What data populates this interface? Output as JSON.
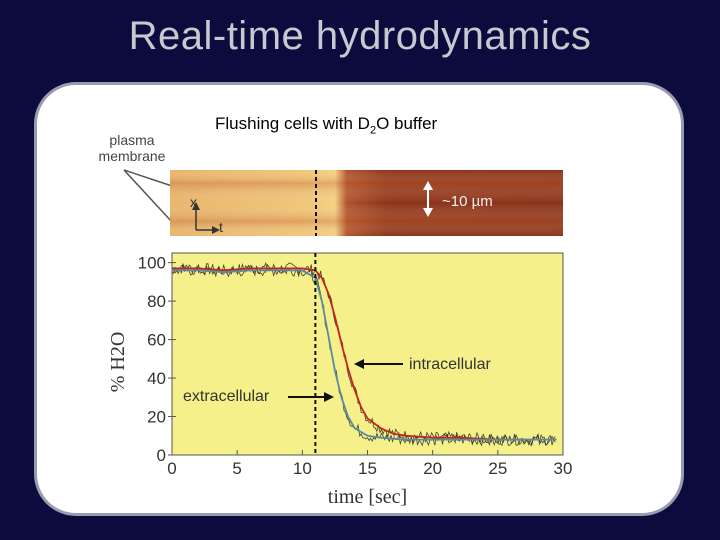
{
  "slide": {
    "title": "Real-time hydrodynamics"
  },
  "figure": {
    "caption_main": "Flushing cells with D",
    "caption_sub": "2",
    "caption_end": "O buffer",
    "membrane_label_line1": "plasma",
    "membrane_label_line2": "membrane",
    "kymograph": {
      "scale_label": "~10 µm",
      "axis_x_label": "x",
      "axis_t_label": "t"
    }
  },
  "chart_data": {
    "type": "line",
    "xlabel": "time [sec]",
    "ylabel": "% H2O",
    "xlim": [
      0,
      30
    ],
    "ylim": [
      0,
      105
    ],
    "xticks": [
      0,
      5,
      10,
      15,
      20,
      25,
      30
    ],
    "yticks": [
      0,
      20,
      40,
      60,
      80,
      100
    ],
    "event_time": 11,
    "colors": {
      "plot_bg": "#f5f08a",
      "intracellular": "#c0281e",
      "extracellular": "#5a8aa0",
      "noise": "#222222"
    },
    "series": [
      {
        "name": "intracellular",
        "x": [
          0,
          2,
          4,
          6,
          8,
          10,
          11,
          11.5,
          12,
          12.5,
          13,
          13.5,
          14,
          14.5,
          15,
          16,
          17,
          18,
          20,
          22,
          25,
          28,
          29.5
        ],
        "values": [
          97,
          97,
          96,
          97,
          97,
          97,
          96,
          92,
          84,
          72,
          58,
          45,
          34,
          25,
          19,
          14,
          11,
          10,
          9,
          9,
          8,
          8,
          8
        ]
      },
      {
        "name": "extracellular",
        "x": [
          0,
          2,
          4,
          6,
          8,
          10,
          11,
          11.5,
          12,
          12.5,
          13,
          13.5,
          14,
          15,
          16,
          18,
          20,
          25,
          29.5
        ],
        "values": [
          96,
          96,
          95,
          96,
          96,
          96,
          92,
          80,
          62,
          44,
          30,
          20,
          14,
          10,
          9,
          8,
          8,
          8,
          8
        ]
      }
    ],
    "annotations": [
      "intracellular",
      "extracellular"
    ]
  }
}
